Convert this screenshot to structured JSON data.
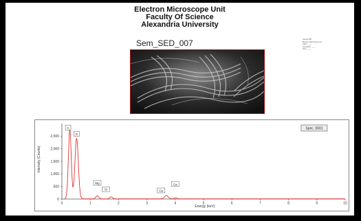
{
  "header": {
    "line1": "Electron Microscope Unit",
    "line2": "Faculty Of Science",
    "line3": "Alexandria University"
  },
  "image_title": "Sem_SED_007",
  "side_note": [
    "Sample ##1",
    "Electron Microscope Unit",
    "Label: ____",
    "Acquisition: ____",
    "Spot: ____"
  ],
  "legend_label": "Spec. 0001",
  "colors": {
    "spectrum": "#d33",
    "peak_box": "#555",
    "image_border": "#aa1111"
  },
  "chart_data": {
    "type": "line",
    "xlabel": "Energy (keV)",
    "ylabel": "Intensity (Counts)",
    "xlim": [
      0,
      10
    ],
    "ylim": [
      0,
      3000
    ],
    "x_ticks": [
      "0",
      "1",
      "2",
      "3",
      "4",
      "5",
      "6",
      "7",
      "8",
      "9",
      "10"
    ],
    "y_ticks": [
      "0",
      "500",
      "1,000",
      "1,500",
      "2,000",
      "2,500"
    ],
    "y_tick_values": [
      0,
      500,
      1000,
      1500,
      2000,
      2500
    ],
    "legend": "Spec. 0001",
    "peaks": [
      {
        "label": "C",
        "energy": 0.28,
        "counts": 2750
      },
      {
        "label": "O",
        "energy": 0.52,
        "counts": 2400
      },
      {
        "label": "Mg",
        "energy": 1.25,
        "counts": 120
      },
      {
        "label": "Si",
        "energy": 1.74,
        "counts": 80
      },
      {
        "label": "Ca",
        "energy": 3.69,
        "counts": 140
      },
      {
        "label": "Ca",
        "energy": 4.01,
        "counts": 40
      }
    ],
    "peak_boxes": [
      {
        "label": "C",
        "energy": 0.22,
        "counts": 2800
      },
      {
        "label": "O",
        "energy": 0.52,
        "counts": 2550
      },
      {
        "label": "Mg",
        "energy": 1.25,
        "counts": 600
      },
      {
        "label": "Si",
        "energy": 1.55,
        "counts": 350
      },
      {
        "label": "Ca",
        "energy": 3.5,
        "counts": 300
      },
      {
        "label": "Ca",
        "energy": 4.0,
        "counts": 550
      }
    ]
  }
}
